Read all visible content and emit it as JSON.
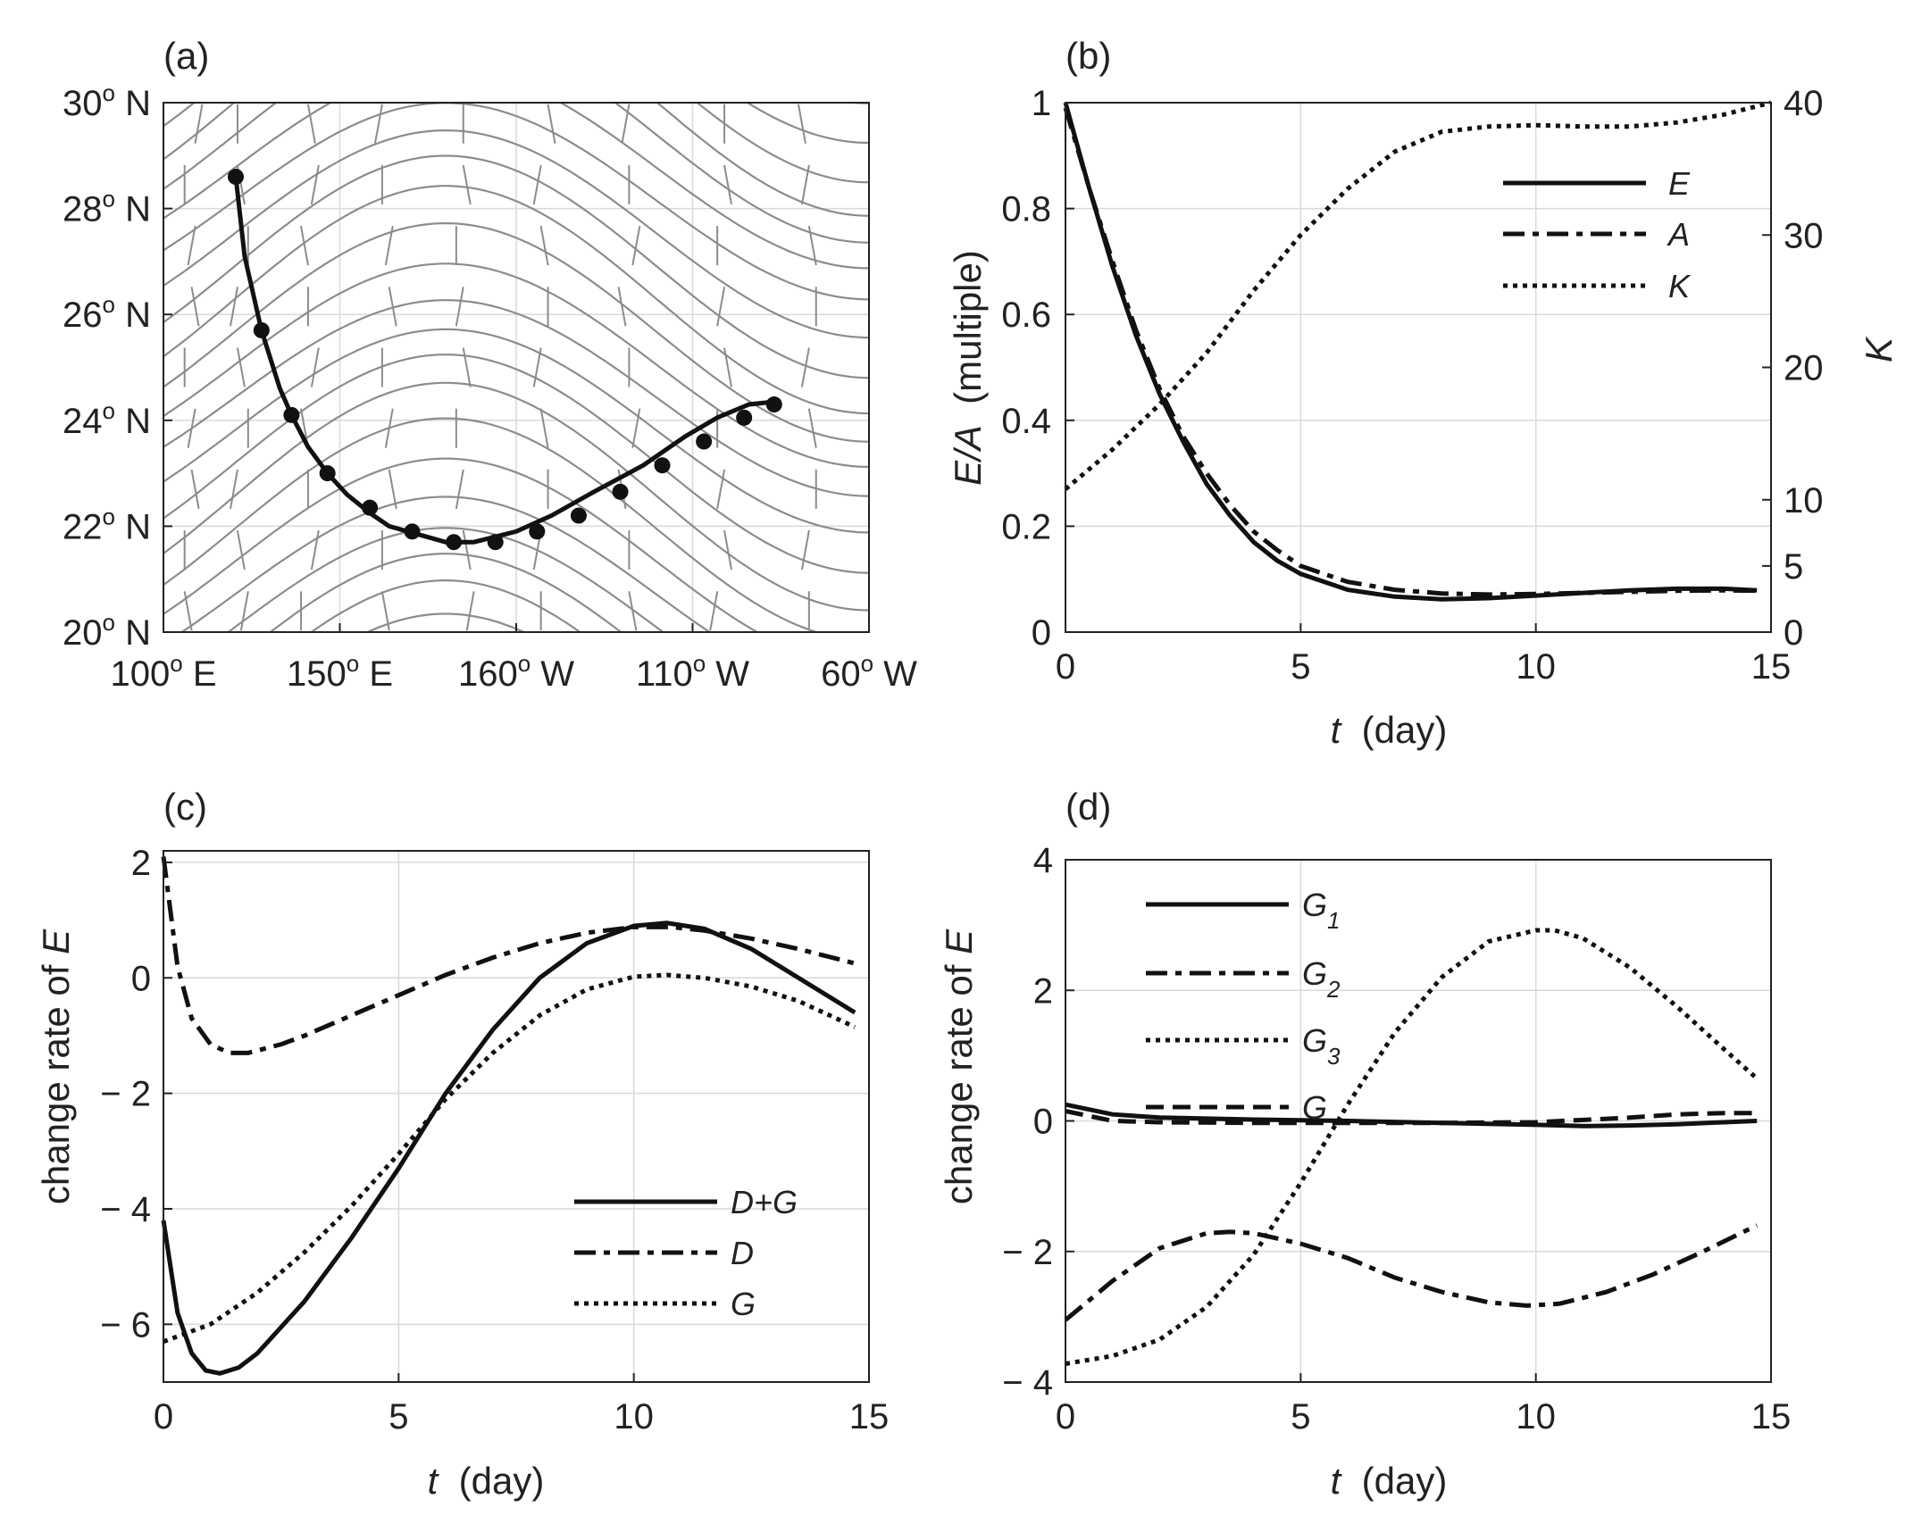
{
  "chart_data": [
    {
      "panel": "(a)",
      "type": "line",
      "title": "",
      "x_ticks": [
        {
          "v": 100,
          "deg": "100",
          "hemi": " E"
        },
        {
          "v": 150,
          "deg": "150",
          "hemi": " E"
        },
        {
          "v": 200,
          "deg": "160",
          "hemi": " W"
        },
        {
          "v": 250,
          "deg": "110",
          "hemi": " W"
        },
        {
          "v": 300,
          "deg": "60",
          "hemi": " W"
        }
      ],
      "y_ticks": [
        {
          "v": 20,
          "deg": "20",
          "hemi": " N"
        },
        {
          "v": 22,
          "deg": "22",
          "hemi": " N"
        },
        {
          "v": 24,
          "deg": "24",
          "hemi": " N"
        },
        {
          "v": 26,
          "deg": "26",
          "hemi": " N"
        },
        {
          "v": 28,
          "deg": "28",
          "hemi": " N"
        },
        {
          "v": 30,
          "deg": "30",
          "hemi": " N"
        }
      ],
      "xlim": [
        100,
        300
      ],
      "ylim": [
        20,
        30
      ],
      "series": [
        {
          "name": "trajectory",
          "line": [
            [
              120.5,
              28.6
            ],
            [
              123,
              27.1
            ],
            [
              127.8,
              25.7
            ],
            [
              133,
              24.6
            ],
            [
              136.3,
              24.1
            ],
            [
              141,
              23.5
            ],
            [
              146.5,
              23.0
            ],
            [
              152,
              22.6
            ],
            [
              158.5,
              22.25
            ],
            [
              164,
              22.0
            ],
            [
              172,
              21.85
            ],
            [
              180,
              21.7
            ],
            [
              188,
              21.7
            ],
            [
              200,
              21.9
            ],
            [
              210,
              22.2
            ],
            [
              222,
              22.65
            ],
            [
              236,
              23.15
            ],
            [
              248,
              23.7
            ],
            [
              257,
              24.05
            ],
            [
              266,
              24.3
            ],
            [
              273,
              24.35
            ]
          ],
          "markers": [
            [
              120.5,
              28.6
            ],
            [
              127.8,
              25.7
            ],
            [
              136.3,
              24.1
            ],
            [
              146.5,
              23.0
            ],
            [
              158.5,
              22.35
            ],
            [
              170.5,
              21.9
            ],
            [
              182.3,
              21.7
            ],
            [
              194.1,
              21.7
            ],
            [
              205.9,
              21.9
            ],
            [
              217.7,
              22.2
            ],
            [
              229.5,
              22.65
            ],
            [
              241.4,
              23.15
            ],
            [
              253.2,
              23.6
            ],
            [
              264.6,
              24.05
            ],
            [
              273.1,
              24.3
            ]
          ]
        }
      ],
      "annotations": "grey contour lines and vector segments in background"
    },
    {
      "panel": "(b)",
      "type": "line",
      "xlabel": "t  (day)",
      "ylabel_left": "E/A  (multiple)",
      "ylabel_right": "K",
      "xlim": [
        0,
        15
      ],
      "ylim_left": [
        0,
        1
      ],
      "ylim_right": [
        0,
        40
      ],
      "x_ticks": [
        "0",
        "5",
        "10",
        "15"
      ],
      "y_ticks_left": [
        "0",
        "0.2",
        "0.4",
        "0.6",
        "0.8",
        "1"
      ],
      "y_ticks_right": [
        "0",
        "5",
        "10",
        "20",
        "30",
        "40"
      ],
      "series": [
        {
          "name": "E",
          "style": "solid",
          "axis": "left",
          "x": [
            0,
            0.5,
            1,
            1.5,
            2,
            2.5,
            3,
            3.5,
            4,
            4.5,
            5,
            6,
            7,
            8,
            9,
            10,
            11,
            12,
            13,
            14,
            14.7
          ],
          "y": [
            1.0,
            0.84,
            0.69,
            0.56,
            0.45,
            0.36,
            0.28,
            0.22,
            0.17,
            0.135,
            0.11,
            0.08,
            0.067,
            0.062,
            0.064,
            0.069,
            0.074,
            0.079,
            0.082,
            0.082,
            0.079
          ]
        },
        {
          "name": "A",
          "style": "dashdot",
          "axis": "left",
          "x": [
            0,
            0.5,
            1,
            1.5,
            2,
            2.5,
            3,
            3.5,
            4,
            4.5,
            5,
            6,
            7,
            8,
            9,
            10,
            11,
            12,
            13,
            14,
            14.7
          ],
          "y": [
            0.99,
            0.84,
            0.7,
            0.57,
            0.46,
            0.37,
            0.3,
            0.24,
            0.19,
            0.155,
            0.125,
            0.095,
            0.08,
            0.073,
            0.071,
            0.072,
            0.074,
            0.076,
            0.078,
            0.079,
            0.078
          ]
        },
        {
          "name": "K",
          "style": "dotted",
          "axis": "right",
          "x": [
            0,
            1,
            2,
            3,
            4,
            5,
            6,
            7,
            8,
            9,
            10,
            11,
            12,
            13,
            14,
            15
          ],
          "y": [
            10.8,
            13.8,
            17.2,
            21.1,
            25.8,
            30.0,
            33.5,
            36.3,
            37.8,
            38.2,
            38.3,
            38.2,
            38.2,
            38.5,
            39.1,
            40.0
          ]
        }
      ],
      "legend": [
        "E",
        "A",
        "K"
      ],
      "grid": true
    },
    {
      "panel": "(c)",
      "type": "line",
      "xlabel": "t  (day)",
      "ylabel": "change rate of E",
      "xlim": [
        0,
        15
      ],
      "ylim": [
        -7,
        2.2
      ],
      "x_ticks": [
        "0",
        "5",
        "10",
        "15"
      ],
      "y_ticks": [
        "2",
        "0",
        "− 2",
        "− 4",
        "− 6"
      ],
      "series": [
        {
          "name": "D+G",
          "style": "solid",
          "x": [
            0,
            0.3,
            0.6,
            0.9,
            1.2,
            1.6,
            2,
            3,
            4,
            5,
            6,
            7,
            8,
            9,
            10,
            10.7,
            11.5,
            12.5,
            13.5,
            14.7
          ],
          "y": [
            -4.2,
            -5.8,
            -6.5,
            -6.8,
            -6.85,
            -6.75,
            -6.5,
            -5.6,
            -4.5,
            -3.3,
            -2.0,
            -0.9,
            0.0,
            0.6,
            0.9,
            0.95,
            0.85,
            0.5,
            0.0,
            -0.6
          ]
        },
        {
          "name": "D",
          "style": "dashdot",
          "x": [
            0,
            0.3,
            0.6,
            1,
            1.4,
            1.8,
            2.5,
            3,
            4,
            5,
            6,
            7,
            8,
            9,
            10,
            10.8,
            11.5,
            12.5,
            13.5,
            14.7
          ],
          "y": [
            2.1,
            0.2,
            -0.7,
            -1.15,
            -1.3,
            -1.3,
            -1.15,
            -1.0,
            -0.65,
            -0.3,
            0.05,
            0.35,
            0.6,
            0.78,
            0.88,
            0.88,
            0.82,
            0.68,
            0.5,
            0.25
          ]
        },
        {
          "name": "G",
          "style": "dotted",
          "x": [
            0,
            1,
            2,
            3,
            4,
            5,
            6,
            7,
            8,
            9,
            10,
            10.7,
            11.5,
            12.5,
            13.5,
            14.7
          ],
          "y": [
            -6.3,
            -6.0,
            -5.45,
            -4.75,
            -3.95,
            -3.05,
            -2.1,
            -1.3,
            -0.65,
            -0.2,
            0.02,
            0.05,
            0.0,
            -0.15,
            -0.4,
            -0.85
          ]
        }
      ],
      "legend": [
        "D+G",
        "D",
        "G"
      ],
      "grid": true
    },
    {
      "panel": "(d)",
      "type": "line",
      "xlabel": "t  (day)",
      "ylabel": "change rate of E",
      "xlim": [
        0,
        15
      ],
      "ylim": [
        -4,
        4
      ],
      "x_ticks": [
        "0",
        "5",
        "10",
        "15"
      ],
      "y_ticks": [
        "4",
        "2",
        "0",
        "− 2",
        "− 4"
      ],
      "series": [
        {
          "name": "G1",
          "style": "solid",
          "x": [
            0,
            1,
            2,
            4,
            6,
            8,
            10,
            11,
            12,
            13,
            14,
            14.7
          ],
          "y": [
            0.25,
            0.1,
            0.05,
            0.02,
            0.0,
            -0.03,
            -0.06,
            -0.08,
            -0.07,
            -0.05,
            -0.02,
            0.0
          ]
        },
        {
          "name": "G2",
          "style": "dashdot",
          "x": [
            0,
            1,
            2,
            3,
            3.5,
            4,
            5,
            6,
            7,
            8,
            9,
            9.8,
            10.5,
            11.5,
            12.5,
            13.5,
            14.7
          ],
          "y": [
            -3.05,
            -2.45,
            -1.95,
            -1.72,
            -1.7,
            -1.72,
            -1.88,
            -2.1,
            -2.4,
            -2.62,
            -2.78,
            -2.83,
            -2.8,
            -2.62,
            -2.35,
            -2.02,
            -1.6
          ]
        },
        {
          "name": "G3",
          "style": "dotted",
          "x": [
            0,
            1,
            2,
            3,
            4,
            5,
            6,
            7,
            8,
            9,
            10,
            10.4,
            11,
            12,
            13,
            14,
            14.7
          ],
          "y": [
            -3.72,
            -3.6,
            -3.35,
            -2.85,
            -2.05,
            -0.95,
            0.25,
            1.35,
            2.2,
            2.75,
            2.92,
            2.92,
            2.8,
            2.35,
            1.75,
            1.1,
            0.65
          ]
        },
        {
          "name": "G",
          "style": "dashed",
          "x": [
            0,
            1,
            2,
            4,
            6,
            8,
            10,
            12,
            13,
            14,
            14.7
          ],
          "y": [
            0.15,
            0.0,
            -0.02,
            -0.03,
            -0.03,
            -0.03,
            -0.02,
            0.05,
            0.1,
            0.12,
            0.12
          ]
        }
      ],
      "legend": [
        {
          "base": "G",
          "sub": "1"
        },
        {
          "base": "G",
          "sub": "2"
        },
        {
          "base": "G",
          "sub": "3"
        },
        {
          "base": "G",
          "sub": ""
        }
      ],
      "grid": true
    }
  ],
  "labels": {
    "panel_a": "(a)",
    "panel_b": "(b)",
    "panel_c": "(c)",
    "panel_d": "(d)",
    "b_ylabel_italic": "E/A",
    "b_ylabel_rest": "  (multiple)",
    "b_ylabel_right": "K",
    "x_label_var": "t",
    "x_label_unit": "  (day)",
    "cd_ylabel_rest": "change rate of ",
    "cd_ylabel_var": "E",
    "deg_mark": "o"
  },
  "colors": {
    "line": "#111111",
    "grid": "#d9d9d9",
    "contour": "#8c8c8c",
    "axis": "#222222"
  }
}
